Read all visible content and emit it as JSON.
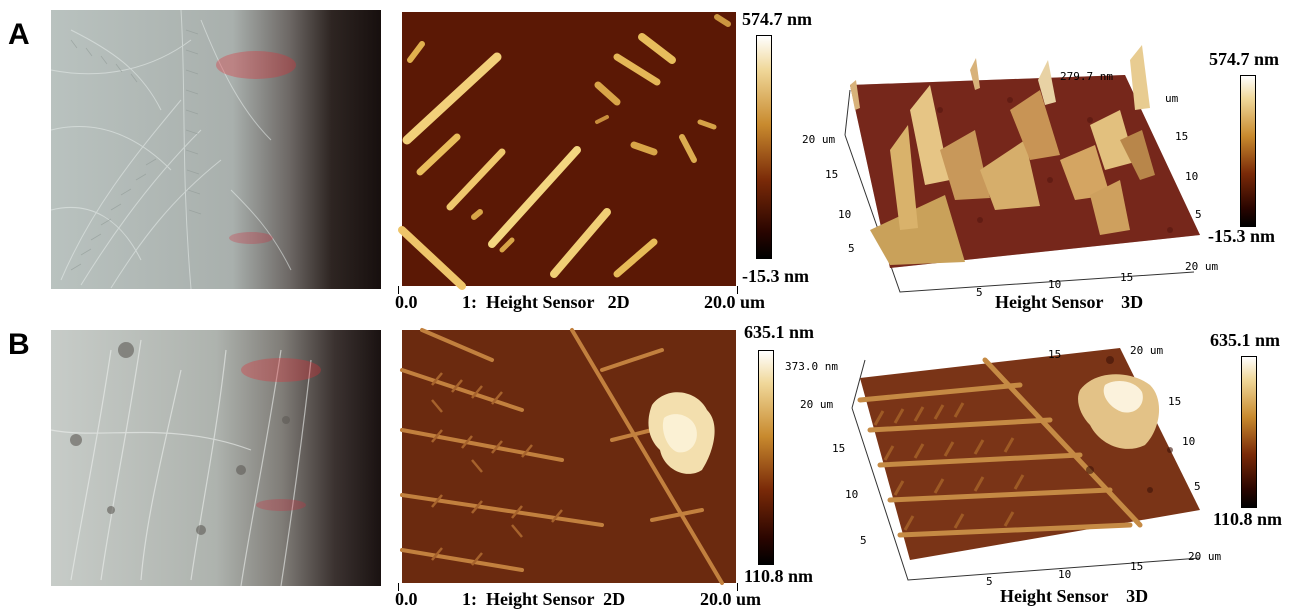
{
  "panels": [
    {
      "letter": "A",
      "scale_max": "574.7 nm",
      "scale_min": "-15.3 nm",
      "scale_max_3d": "574.7 nm",
      "scale_min_3d": "-15.3 nm",
      "z_mid_3d": "279.7 nm",
      "axis_start": "0.0",
      "axis_end": "20.0 um",
      "caption_2d": "1:  Height Sensor   2D",
      "caption_3d": "Height Sensor    3D",
      "ticks_3d": {
        "left": [
          "20 um",
          "15",
          "10",
          "5"
        ],
        "bottom": [
          "5",
          "10",
          "15",
          "20 um"
        ],
        "right": [
          "um",
          "15",
          "10",
          "5"
        ]
      }
    },
    {
      "letter": "B",
      "scale_max": "635.1 nm",
      "scale_min": "110.8 nm",
      "scale_max_3d": "635.1 nm",
      "scale_min_3d": "110.8 nm",
      "z_mid_3d": "373.0 nm",
      "axis_start": "0.0",
      "axis_end": "20.0 um",
      "caption_2d": "1:  Height Sensor  2D",
      "caption_3d": "Height Sensor    3D",
      "ticks_3d": {
        "left": [
          "20 um",
          "15",
          "10",
          "5"
        ],
        "bottom": [
          "5",
          "10",
          "15",
          "20 um"
        ],
        "top": [
          "15",
          "20 um"
        ],
        "right": [
          "15",
          "10",
          "5"
        ]
      }
    }
  ]
}
